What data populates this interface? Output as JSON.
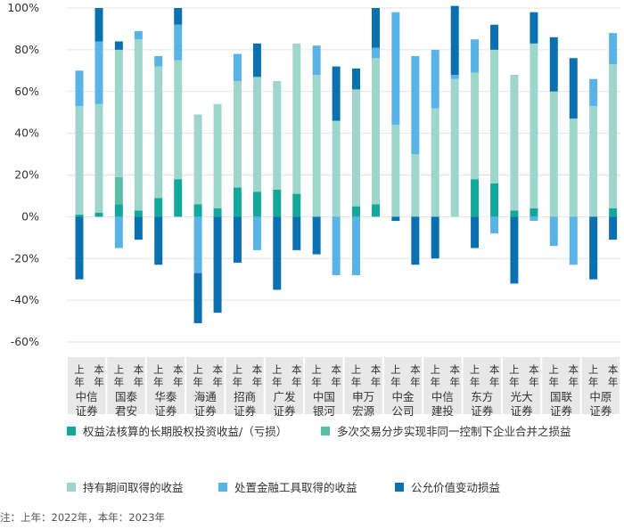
{
  "chart_data": {
    "type": "bar",
    "stacked": true,
    "ylim": [
      -60,
      100
    ],
    "yticks": [
      "100%",
      "80%",
      "60%",
      "40%",
      "20%",
      "0%",
      "-20%",
      "-40%",
      "-60%"
    ],
    "ytick_values": [
      100,
      80,
      60,
      40,
      20,
      0,
      -20,
      -40,
      -60
    ],
    "bar_labels": [
      "上年",
      "本年"
    ],
    "groups": [
      {
        "name": "中信证券",
        "line1": "中信",
        "line2": "证券"
      },
      {
        "name": "国泰君安",
        "line1": "国泰",
        "line2": "君安"
      },
      {
        "name": "华泰证券",
        "line1": "华泰",
        "line2": "证券"
      },
      {
        "name": "海通证券",
        "line1": "海通",
        "line2": "证券"
      },
      {
        "name": "招商证券",
        "line1": "招商",
        "line2": "证券"
      },
      {
        "name": "广发证券",
        "line1": "广发",
        "line2": "证券"
      },
      {
        "name": "中国银河",
        "line1": "中国",
        "line2": "银河"
      },
      {
        "name": "申万宏源",
        "line1": "申万",
        "line2": "宏源"
      },
      {
        "name": "中金公司",
        "line1": "中金",
        "line2": "公司"
      },
      {
        "name": "中信建投",
        "line1": "中信",
        "line2": "建投"
      },
      {
        "name": "东方证券",
        "line1": "东方",
        "line2": "证券"
      },
      {
        "name": "光大证券",
        "line1": "光大",
        "line2": "证券"
      },
      {
        "name": "国联证券",
        "line1": "国联",
        "line2": "证券"
      },
      {
        "name": "中原证券",
        "line1": "中原",
        "line2": "证券"
      }
    ],
    "series": [
      {
        "name": "权益法核算的长期股权投资收益/（亏损）",
        "color": "#13a899",
        "values": [
          [
            1,
            2
          ],
          [
            6,
            3
          ],
          [
            9,
            18
          ],
          [
            6,
            4
          ],
          [
            14,
            12
          ],
          [
            13,
            11
          ],
          [
            0,
            0
          ],
          [
            5,
            6
          ],
          [
            0,
            0
          ],
          [
            0,
            0
          ],
          [
            18,
            16
          ],
          [
            3,
            4
          ],
          [
            0,
            0
          ],
          [
            0,
            4
          ]
        ]
      },
      {
        "name": "多次交易分步实现非同一控制下企业合并之损益",
        "color": "#5bbfa5",
        "values": [
          [
            0,
            0
          ],
          [
            13,
            0
          ],
          [
            0,
            0
          ],
          [
            0,
            0
          ],
          [
            0,
            0
          ],
          [
            0,
            0
          ],
          [
            0,
            0
          ],
          [
            0,
            0
          ],
          [
            0,
            0
          ],
          [
            0,
            0
          ],
          [
            0,
            0
          ],
          [
            0,
            0
          ],
          [
            0,
            0
          ],
          [
            0,
            0
          ]
        ]
      },
      {
        "name": "持有期间取得的收益",
        "color": "#9fd6cc",
        "values": [
          [
            52,
            52
          ],
          [
            61,
            82
          ],
          [
            63,
            57
          ],
          [
            43,
            50
          ],
          [
            51,
            55
          ],
          [
            52,
            72
          ],
          [
            68,
            46
          ],
          [
            56,
            70
          ],
          [
            44,
            30
          ],
          [
            52,
            66
          ],
          [
            51,
            64
          ],
          [
            65,
            79
          ],
          [
            60,
            47
          ],
          [
            53,
            69
          ]
        ]
      },
      {
        "name": "处置金融工具取得的收益",
        "color": "#59b3e6",
        "values": [
          [
            17,
            30
          ],
          [
            0,
            4
          ],
          [
            5,
            17
          ],
          [
            0,
            0
          ],
          [
            13,
            0
          ],
          [
            0,
            0
          ],
          [
            14,
            0
          ],
          [
            0,
            5
          ],
          [
            54,
            47
          ],
          [
            28,
            2
          ],
          [
            16,
            0
          ],
          [
            0,
            0
          ],
          [
            0,
            0
          ],
          [
            13,
            15
          ]
        ]
      },
      {
        "name": "公允价值变动损益",
        "color": "#0b70b0",
        "values": [
          [
            0,
            16
          ],
          [
            4,
            0
          ],
          [
            0,
            8
          ],
          [
            0,
            0
          ],
          [
            0,
            16
          ],
          [
            0,
            0
          ],
          [
            0,
            26
          ],
          [
            10,
            19
          ],
          [
            0,
            0
          ],
          [
            0,
            33
          ],
          [
            0,
            12
          ],
          [
            0,
            15
          ],
          [
            26,
            29
          ],
          [
            0,
            0
          ]
        ]
      }
    ],
    "negative_series": [
      {
        "name": "处置金融工具取得的收益",
        "color": "#59b3e6",
        "values": [
          [
            0,
            0
          ],
          [
            -15,
            0
          ],
          [
            0,
            0
          ],
          [
            -27,
            0
          ],
          [
            0,
            -16
          ],
          [
            0,
            0
          ],
          [
            0,
            -28
          ],
          [
            -28,
            0
          ],
          [
            0,
            0
          ],
          [
            0,
            0
          ],
          [
            0,
            -8
          ],
          [
            0,
            -2
          ],
          [
            -14,
            -23
          ],
          [
            0,
            0
          ]
        ]
      },
      {
        "name": "公允价值变动损益",
        "color": "#0b70b0",
        "values": [
          [
            -30,
            0
          ],
          [
            0,
            -11
          ],
          [
            -23,
            0
          ],
          [
            -24,
            -46
          ],
          [
            -22,
            0
          ],
          [
            -35,
            -16
          ],
          [
            -18,
            0
          ],
          [
            0,
            0
          ],
          [
            -2,
            -23
          ],
          [
            -20,
            0
          ],
          [
            -15,
            0
          ],
          [
            -32,
            0
          ],
          [
            0,
            0
          ],
          [
            -30,
            -11
          ]
        ]
      }
    ],
    "legend_position": "bottom",
    "gridlines": true
  },
  "note": "注：上年：2022年，本年：2023年"
}
